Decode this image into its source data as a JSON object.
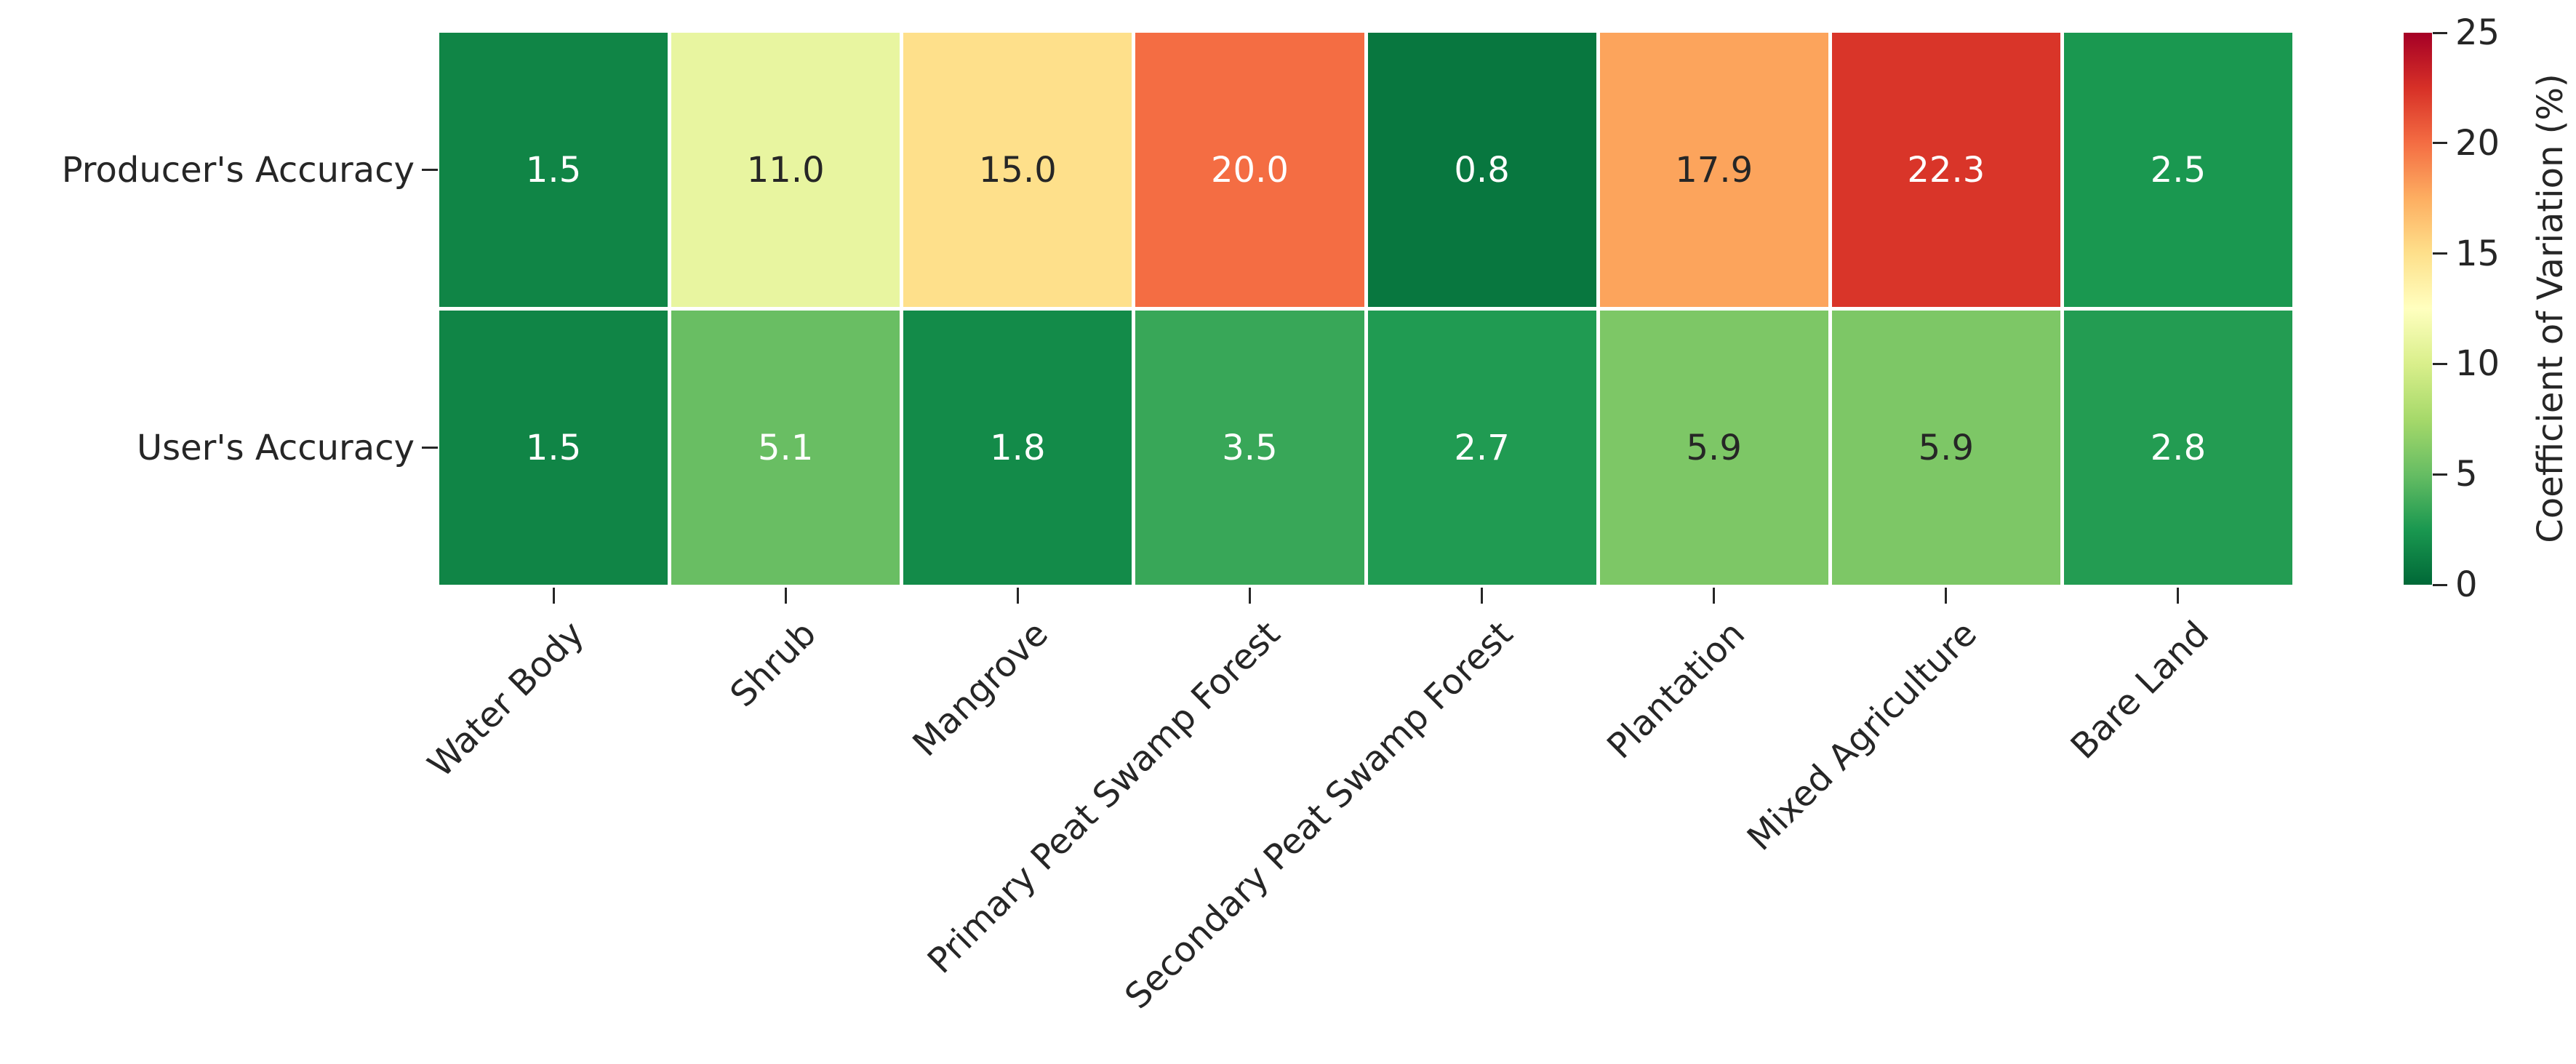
{
  "figure": {
    "background": "#ffffff",
    "axis_text_color": "#262626"
  },
  "chart_data": {
    "type": "heatmap",
    "rows": [
      "Producer's Accuracy",
      "User's Accuracy"
    ],
    "columns": [
      "Water Body",
      "Shrub",
      "Mangrove",
      "Primary Peat Swamp Forest",
      "Secondary Peat Swamp Forest",
      "Plantation",
      "Mixed Agriculture",
      "Bare Land"
    ],
    "values": [
      [
        1.5,
        11.0,
        15.0,
        20.0,
        0.8,
        17.9,
        22.3,
        2.5
      ],
      [
        1.5,
        5.1,
        1.8,
        3.5,
        2.7,
        5.9,
        5.9,
        2.8
      ]
    ],
    "value_decimals": 1,
    "vmin": 0,
    "vmax": 25,
    "colormap_name": "RdYlGn_r",
    "colormap_stops": [
      "#006837",
      "#1a9850",
      "#66bd63",
      "#a6d96a",
      "#d9ef8b",
      "#ffffbf",
      "#fee08b",
      "#fdae61",
      "#f46d43",
      "#d73027",
      "#a50026"
    ],
    "cell_gap_color": "#ffffff",
    "cell_text_colors": {
      "on_dark": "#ffffff",
      "on_light": "#262626"
    },
    "x_tick_rotation_deg": 45,
    "colorbar": {
      "label": "Coefficient of Variation (%)",
      "ticks": [
        0,
        5,
        10,
        15,
        20,
        25
      ]
    },
    "legend_position": "right",
    "grid": false
  }
}
